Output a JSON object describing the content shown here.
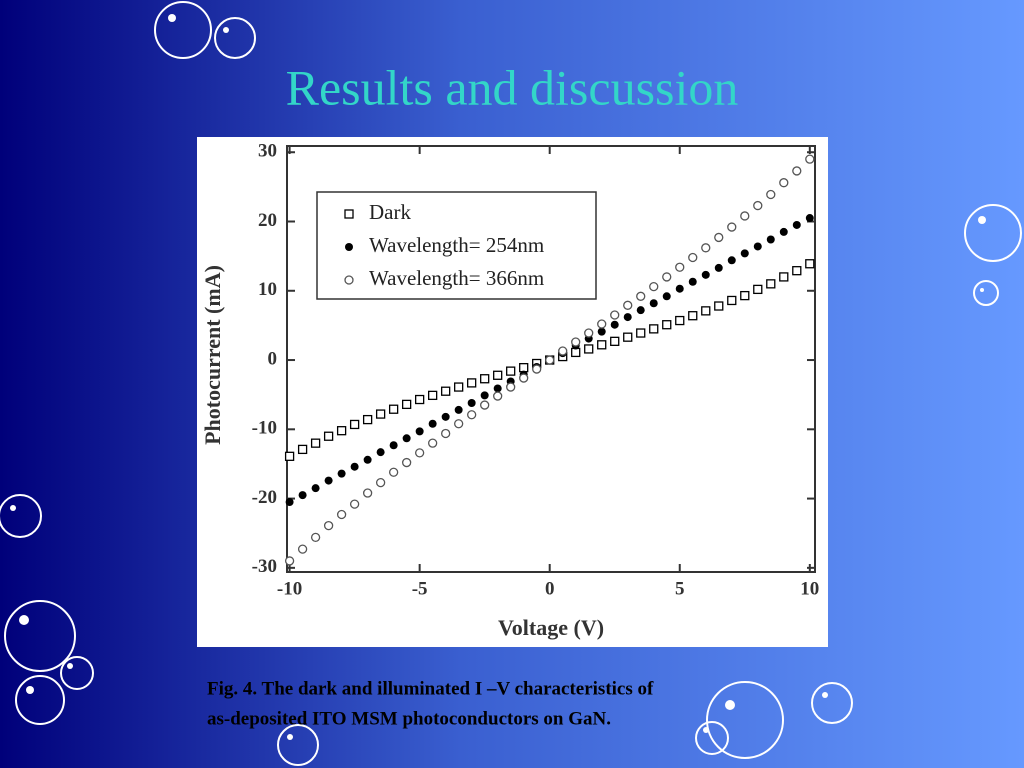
{
  "slide": {
    "title": "Results and discussion",
    "caption": [
      "Fig. 4. The dark and illuminated I –V characteristics of",
      "as-deposited ITO MSM photoconductors on GaN."
    ]
  },
  "chart_data": {
    "type": "scatter",
    "x_label": "Voltage (V)",
    "y_label": "Photocurrent (mA)",
    "x": [
      -10,
      -9.5,
      -9,
      -8.5,
      -8,
      -7.5,
      -7,
      -6.5,
      -6,
      -5.5,
      -5,
      -4.5,
      -4,
      -3.5,
      -3,
      -2.5,
      -2,
      -1.5,
      -1,
      -0.5,
      0,
      0.5,
      1,
      1.5,
      2,
      2.5,
      3,
      3.5,
      4,
      4.5,
      5,
      5.5,
      6,
      6.5,
      7,
      7.5,
      8,
      8.5,
      9,
      9.5,
      10
    ],
    "series": [
      {
        "name": "Dark",
        "color": "#000000",
        "marker": "open-square",
        "values": [
          -13.9,
          -12.9,
          -12.0,
          -11.0,
          -10.2,
          -9.3,
          -8.6,
          -7.8,
          -7.1,
          -6.4,
          -5.7,
          -5.1,
          -4.5,
          -3.9,
          -3.3,
          -2.7,
          -2.2,
          -1.6,
          -1.1,
          -0.5,
          0,
          0.5,
          1.1,
          1.6,
          2.2,
          2.7,
          3.3,
          3.9,
          4.5,
          5.1,
          5.7,
          6.4,
          7.1,
          7.8,
          8.6,
          9.3,
          10.2,
          11.0,
          12.0,
          12.9,
          13.9
        ]
      },
      {
        "name": "Wavelength= 254nm",
        "color": "#000000",
        "marker": "filled-circle",
        "values": [
          -20.5,
          -19.5,
          -18.5,
          -17.4,
          -16.4,
          -15.4,
          -14.4,
          -13.3,
          -12.3,
          -11.3,
          -10.3,
          -9.2,
          -8.2,
          -7.2,
          -6.2,
          -5.1,
          -4.1,
          -3.1,
          -2.1,
          -1.0,
          0,
          1.0,
          2.1,
          3.1,
          4.1,
          5.1,
          6.2,
          7.2,
          8.2,
          9.2,
          10.3,
          11.3,
          12.3,
          13.3,
          14.4,
          15.4,
          16.4,
          17.4,
          18.5,
          19.5,
          20.5
        ]
      },
      {
        "name": "Wavelength= 366nm",
        "color": "#555555",
        "marker": "open-circle",
        "values": [
          -29.0,
          -27.3,
          -25.6,
          -23.9,
          -22.3,
          -20.8,
          -19.2,
          -17.7,
          -16.2,
          -14.8,
          -13.4,
          -12.0,
          -10.6,
          -9.2,
          -7.9,
          -6.5,
          -5.2,
          -3.9,
          -2.6,
          -1.3,
          0,
          1.3,
          2.6,
          3.9,
          5.2,
          6.5,
          7.9,
          9.2,
          10.6,
          12.0,
          13.4,
          14.8,
          16.2,
          17.7,
          19.2,
          20.8,
          22.3,
          23.9,
          25.6,
          27.3,
          29.0
        ]
      }
    ],
    "xlim": [
      -10.1,
      10.2
    ],
    "ylim": [
      -30.6,
      30.9
    ],
    "xticks": [
      -10,
      -5,
      0,
      5,
      10
    ],
    "yticks": [
      -30,
      -20,
      -10,
      0,
      10,
      20,
      30
    ],
    "legend": "upper-left"
  }
}
